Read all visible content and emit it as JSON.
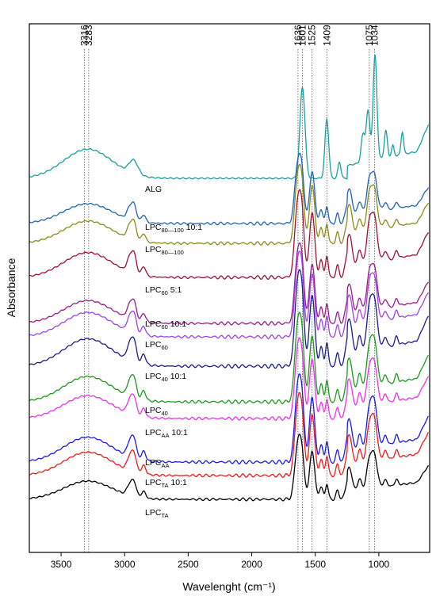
{
  "chart_data": {
    "type": "line",
    "title": "",
    "xlabel": "Wavelenght (cm⁻¹)",
    "ylabel": "Absorbance",
    "x_reversed": true,
    "xlim": [
      3750,
      600
    ],
    "x_ticks": [
      3500,
      3000,
      2500,
      2000,
      1500,
      1000
    ],
    "y_ticks": "none",
    "grid": false,
    "legend": "none",
    "reference_lines": [
      3316,
      3283,
      1636,
      1601,
      1525,
      1409,
      1075,
      1034
    ],
    "reference_line_labels": [
      "3316",
      "3283",
      "1636",
      "1601",
      "1525",
      "1409",
      "1075",
      "1034"
    ],
    "series": [
      {
        "label_main": "ALG",
        "label_sub": "",
        "label_suffix": "",
        "color": "#1a9e9e"
      },
      {
        "label_main": "LPC",
        "label_sub": "80—100",
        "label_suffix": " 10:1",
        "color": "#1f63b5"
      },
      {
        "label_main": "LPC",
        "label_sub": "80—100",
        "label_suffix": "",
        "color": "#8a8a1a"
      },
      {
        "label_main": "LPC",
        "label_sub": "60",
        "label_suffix": " 5:1",
        "color": "#a01030"
      },
      {
        "label_main": "LPC",
        "label_sub": "60",
        "label_suffix": " 10:1",
        "color": "#9a1a8a"
      },
      {
        "label_main": "LPC",
        "label_sub": "60",
        "label_suffix": "",
        "color": "#a040e8"
      },
      {
        "label_main": "LPC",
        "label_sub": "40",
        "label_suffix": " 10:1",
        "color": "#1a1a8a"
      },
      {
        "label_main": "LPC",
        "label_sub": "40",
        "label_suffix": "",
        "color": "#1a9a1a"
      },
      {
        "label_main": "LPC",
        "label_sub": "AA",
        "label_suffix": " 10:1",
        "color": "#ee30ee"
      },
      {
        "label_main": "LPC",
        "label_sub": "AA",
        "label_suffix": "",
        "color": "#1a1aee"
      },
      {
        "label_main": "LPC",
        "label_sub": "TA",
        "label_suffix": " 10:1",
        "color": "#ee1a1a"
      },
      {
        "label_main": "LPC",
        "label_sub": "TA",
        "label_suffix": "",
        "color": "#000000"
      }
    ]
  }
}
